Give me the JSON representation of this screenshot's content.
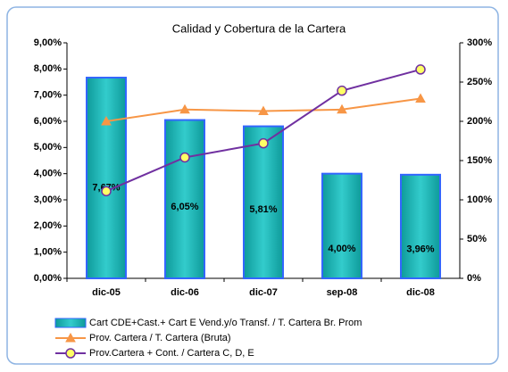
{
  "chart_data": {
    "type": "bar",
    "title": "Calidad y Cobertura de la Cartera",
    "categories": [
      "dic-05",
      "dic-06",
      "dic-07",
      "sep-08",
      "dic-08"
    ],
    "series": [
      {
        "name": "Cart CDE+Cast.+  Cart E Vend.y/o Transf. / T. Cartera Br. Prom",
        "type": "bar",
        "color": "#0e9a9a",
        "edge": "#3366ff",
        "values": [
          7.67,
          6.05,
          5.81,
          4.0,
          3.96
        ],
        "value_labels": [
          "7,67%",
          "6,05%",
          "5,81%",
          "4,00%",
          "3,96%"
        ]
      },
      {
        "name": "Prov. Cartera / T. Cartera (Bruta)",
        "type": "line",
        "axis": "y2",
        "color": "#f79646",
        "marker": "triangle",
        "marker_fill": "#f79646",
        "values": [
          200,
          215,
          213,
          215,
          229
        ]
      },
      {
        "name": "Prov.Cartera + Cont. / Cartera C, D, E",
        "type": "line",
        "axis": "y2",
        "color": "#7030a0",
        "marker": "circle",
        "marker_fill": "#ffff66",
        "values": [
          111,
          154,
          172,
          239,
          266
        ]
      }
    ],
    "ylim": [
      0,
      9
    ],
    "yticks": [
      {
        "value": 0,
        "label": "0,00%"
      },
      {
        "value": 1,
        "label": "1,00%"
      },
      {
        "value": 2,
        "label": "2,00%"
      },
      {
        "value": 3,
        "label": "3,00%"
      },
      {
        "value": 4,
        "label": "4,00%"
      },
      {
        "value": 5,
        "label": "5,00%"
      },
      {
        "value": 6,
        "label": "6,00%"
      },
      {
        "value": 7,
        "label": "7,00%"
      },
      {
        "value": 8,
        "label": "8,00%"
      },
      {
        "value": 9,
        "label": "9,00%"
      }
    ],
    "y2lim": [
      0,
      300
    ],
    "y2ticks": [
      {
        "value": 0,
        "label": "0%"
      },
      {
        "value": 50,
        "label": "50%"
      },
      {
        "value": 100,
        "label": "100%"
      },
      {
        "value": 150,
        "label": "150%"
      },
      {
        "value": 200,
        "label": "200%"
      },
      {
        "value": 250,
        "label": "250%"
      },
      {
        "value": 300,
        "label": "300%"
      }
    ],
    "grid": false
  }
}
